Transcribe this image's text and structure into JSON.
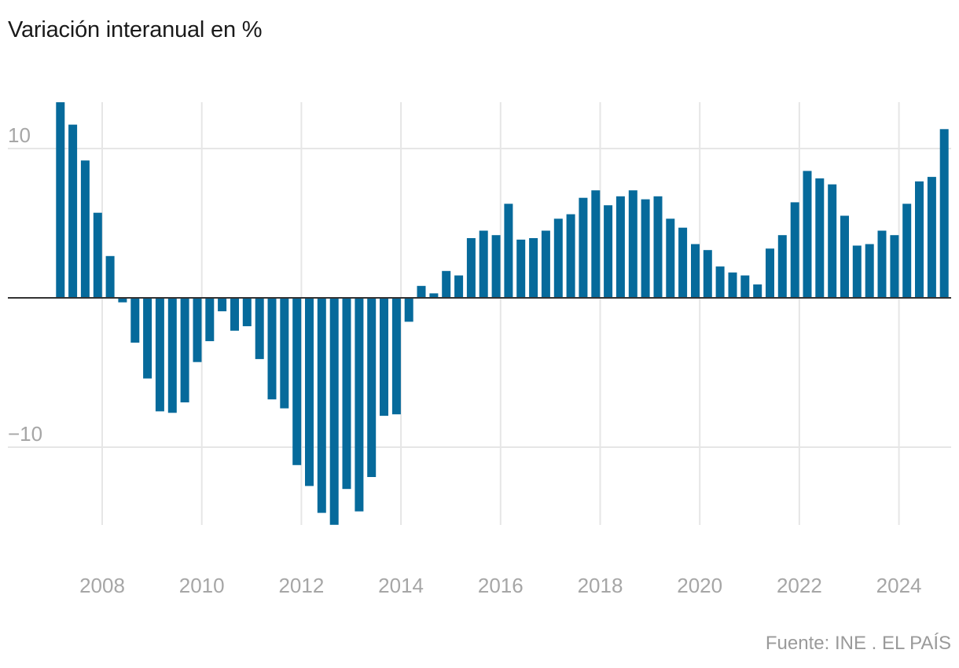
{
  "chart_data": {
    "type": "bar",
    "title": "Variación interanual en %",
    "source": "Fuente: INE . EL PAÍS",
    "xlabel": "",
    "ylabel": "",
    "color": "#066a9b",
    "grid": true,
    "ylim": [
      -15.2,
      13.1
    ],
    "yticks": [
      10,
      -10
    ],
    "ytick_labels": [
      "10",
      "−10"
    ],
    "xticks": [
      2008,
      2010,
      2012,
      2014,
      2016,
      2018,
      2020,
      2022,
      2024
    ],
    "xtick_labels": [
      "2008",
      "2010",
      "2012",
      "2014",
      "2016",
      "2018",
      "2020",
      "2022",
      "2024"
    ],
    "x_range": [
      2007,
      2025
    ],
    "categories": [
      "2007-T1",
      "2007-T2",
      "2007-T3",
      "2007-T4",
      "2008-T1",
      "2008-T2",
      "2008-T3",
      "2008-T4",
      "2009-T1",
      "2009-T2",
      "2009-T3",
      "2009-T4",
      "2010-T1",
      "2010-T2",
      "2010-T3",
      "2010-T4",
      "2011-T1",
      "2011-T2",
      "2011-T3",
      "2011-T4",
      "2012-T1",
      "2012-T2",
      "2012-T3",
      "2012-T4",
      "2013-T1",
      "2013-T2",
      "2013-T3",
      "2013-T4",
      "2014-T1",
      "2014-T2",
      "2014-T3",
      "2014-T4",
      "2015-T1",
      "2015-T2",
      "2015-T3",
      "2015-T4",
      "2016-T1",
      "2016-T2",
      "2016-T3",
      "2016-T4",
      "2017-T1",
      "2017-T2",
      "2017-T3",
      "2017-T4",
      "2018-T1",
      "2018-T2",
      "2018-T3",
      "2018-T4",
      "2019-T1",
      "2019-T2",
      "2019-T3",
      "2019-T4",
      "2020-T1",
      "2020-T2",
      "2020-T3",
      "2020-T4",
      "2021-T1",
      "2021-T2",
      "2021-T3",
      "2021-T4",
      "2022-T1",
      "2022-T2",
      "2022-T3",
      "2022-T4",
      "2023-T1",
      "2023-T2",
      "2023-T3",
      "2023-T4",
      "2024-T1",
      "2024-T2",
      "2024-T3",
      "2024-T4"
    ],
    "values": [
      13.1,
      11.6,
      9.2,
      5.7,
      2.8,
      -0.3,
      -3.0,
      -5.4,
      -7.6,
      -7.7,
      -7.0,
      -4.3,
      -2.9,
      -0.9,
      -2.2,
      -1.9,
      -4.1,
      -6.8,
      -7.4,
      -11.2,
      -12.6,
      -14.4,
      -15.2,
      -12.8,
      -14.3,
      -12.0,
      -7.9,
      -7.8,
      -1.6,
      0.8,
      0.3,
      1.8,
      1.5,
      4.0,
      4.5,
      4.2,
      6.3,
      3.9,
      4.0,
      4.5,
      5.3,
      5.6,
      6.7,
      7.2,
      6.2,
      6.8,
      7.2,
      6.6,
      6.8,
      5.3,
      4.7,
      3.6,
      3.2,
      2.1,
      1.7,
      1.5,
      0.9,
      3.3,
      4.2,
      6.4,
      8.5,
      8.0,
      7.6,
      5.5,
      3.5,
      3.6,
      4.5,
      4.2,
      6.3,
      7.8,
      8.1,
      11.3
    ]
  }
}
